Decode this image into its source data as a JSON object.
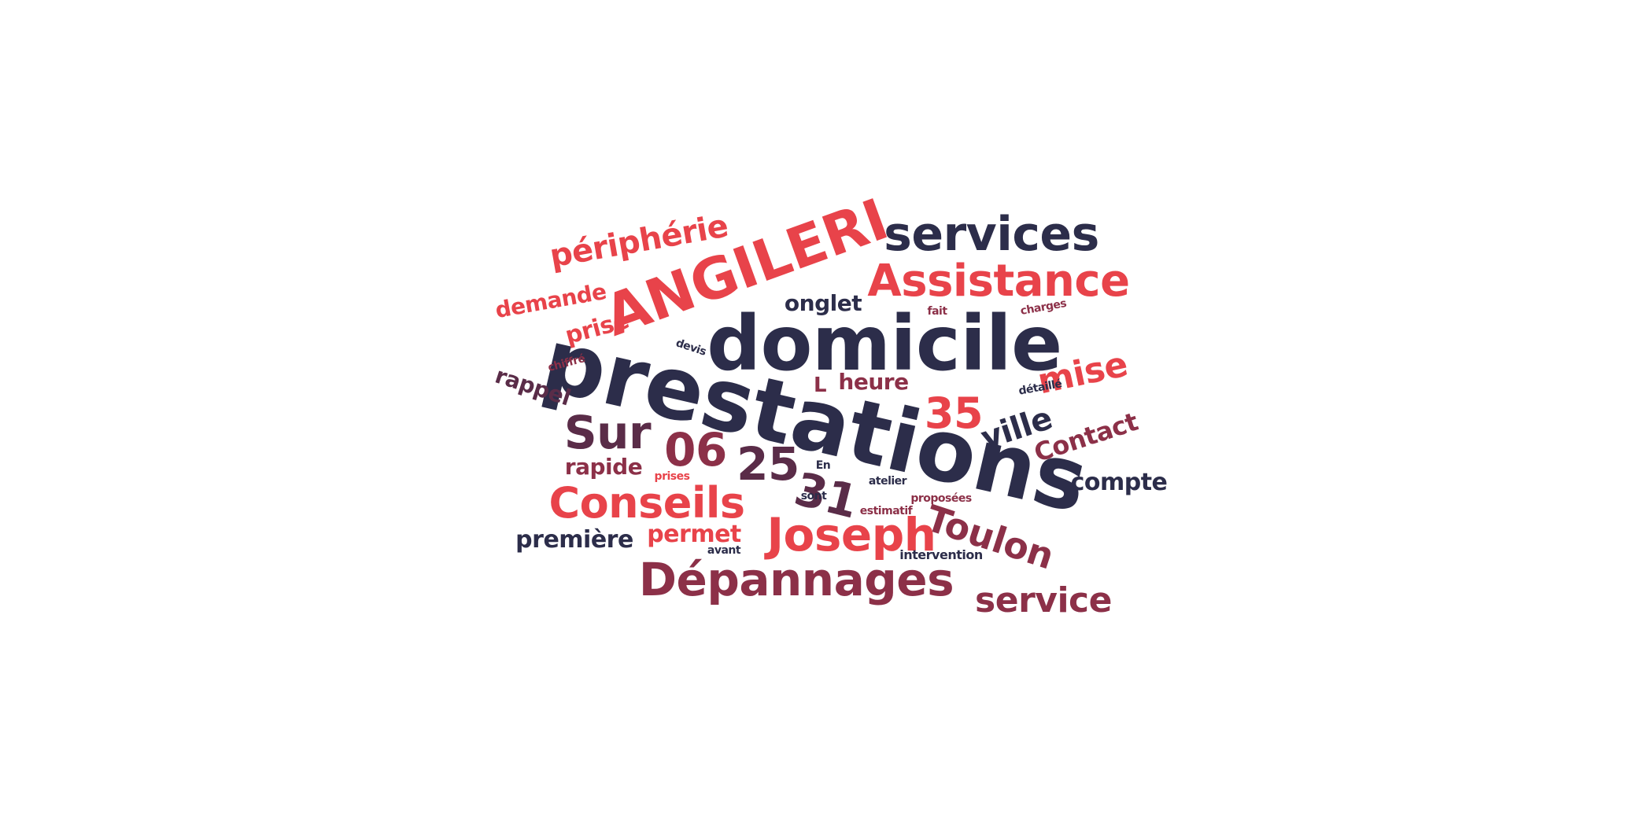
{
  "palette": {
    "navy": "#2c2d4a",
    "plum": "#5a2c48",
    "wine": "#8c3048",
    "coral": "#e8434a",
    "background": "#ffffff"
  },
  "words": [
    {
      "text": "prestations",
      "color": "navy"
    },
    {
      "text": "domicile",
      "color": "navy"
    },
    {
      "text": "ANGILERI",
      "color": "coral"
    },
    {
      "text": "services",
      "color": "navy"
    },
    {
      "text": "Assistance",
      "color": "coral"
    },
    {
      "text": "Dépannages",
      "color": "wine"
    },
    {
      "text": "Joseph",
      "color": "coral"
    },
    {
      "text": "Conseils",
      "color": "coral"
    },
    {
      "text": "périphérie",
      "color": "coral"
    },
    {
      "text": "Toulon",
      "color": "wine"
    },
    {
      "text": "service",
      "color": "wine"
    },
    {
      "text": "Sur",
      "color": "plum"
    },
    {
      "text": "06",
      "color": "wine"
    },
    {
      "text": "25",
      "color": "plum"
    },
    {
      "text": "31",
      "color": "plum"
    },
    {
      "text": "35",
      "color": "coral"
    },
    {
      "text": "mise",
      "color": "coral"
    },
    {
      "text": "ville",
      "color": "navy"
    },
    {
      "text": "Contact",
      "color": "wine"
    },
    {
      "text": "compte",
      "color": "navy"
    },
    {
      "text": "première",
      "color": "navy"
    },
    {
      "text": "permet",
      "color": "coral"
    },
    {
      "text": "rapide",
      "color": "wine"
    },
    {
      "text": "demande",
      "color": "coral"
    },
    {
      "text": "prise",
      "color": "coral"
    },
    {
      "text": "rappel",
      "color": "plum"
    },
    {
      "text": "onglet",
      "color": "navy"
    },
    {
      "text": "heure",
      "color": "wine"
    },
    {
      "text": "L",
      "color": "wine"
    },
    {
      "text": "devis",
      "color": "navy"
    },
    {
      "text": "chiffré",
      "color": "wine"
    },
    {
      "text": "fait",
      "color": "wine"
    },
    {
      "text": "charges",
      "color": "wine"
    },
    {
      "text": "détaillé",
      "color": "navy"
    },
    {
      "text": "En",
      "color": "navy"
    },
    {
      "text": "prises",
      "color": "coral"
    },
    {
      "text": "sont",
      "color": "navy"
    },
    {
      "text": "atelier",
      "color": "navy"
    },
    {
      "text": "proposées",
      "color": "wine"
    },
    {
      "text": "estimatif",
      "color": "wine"
    },
    {
      "text": "avant",
      "color": "navy"
    },
    {
      "text": "intervention",
      "color": "navy"
    }
  ]
}
